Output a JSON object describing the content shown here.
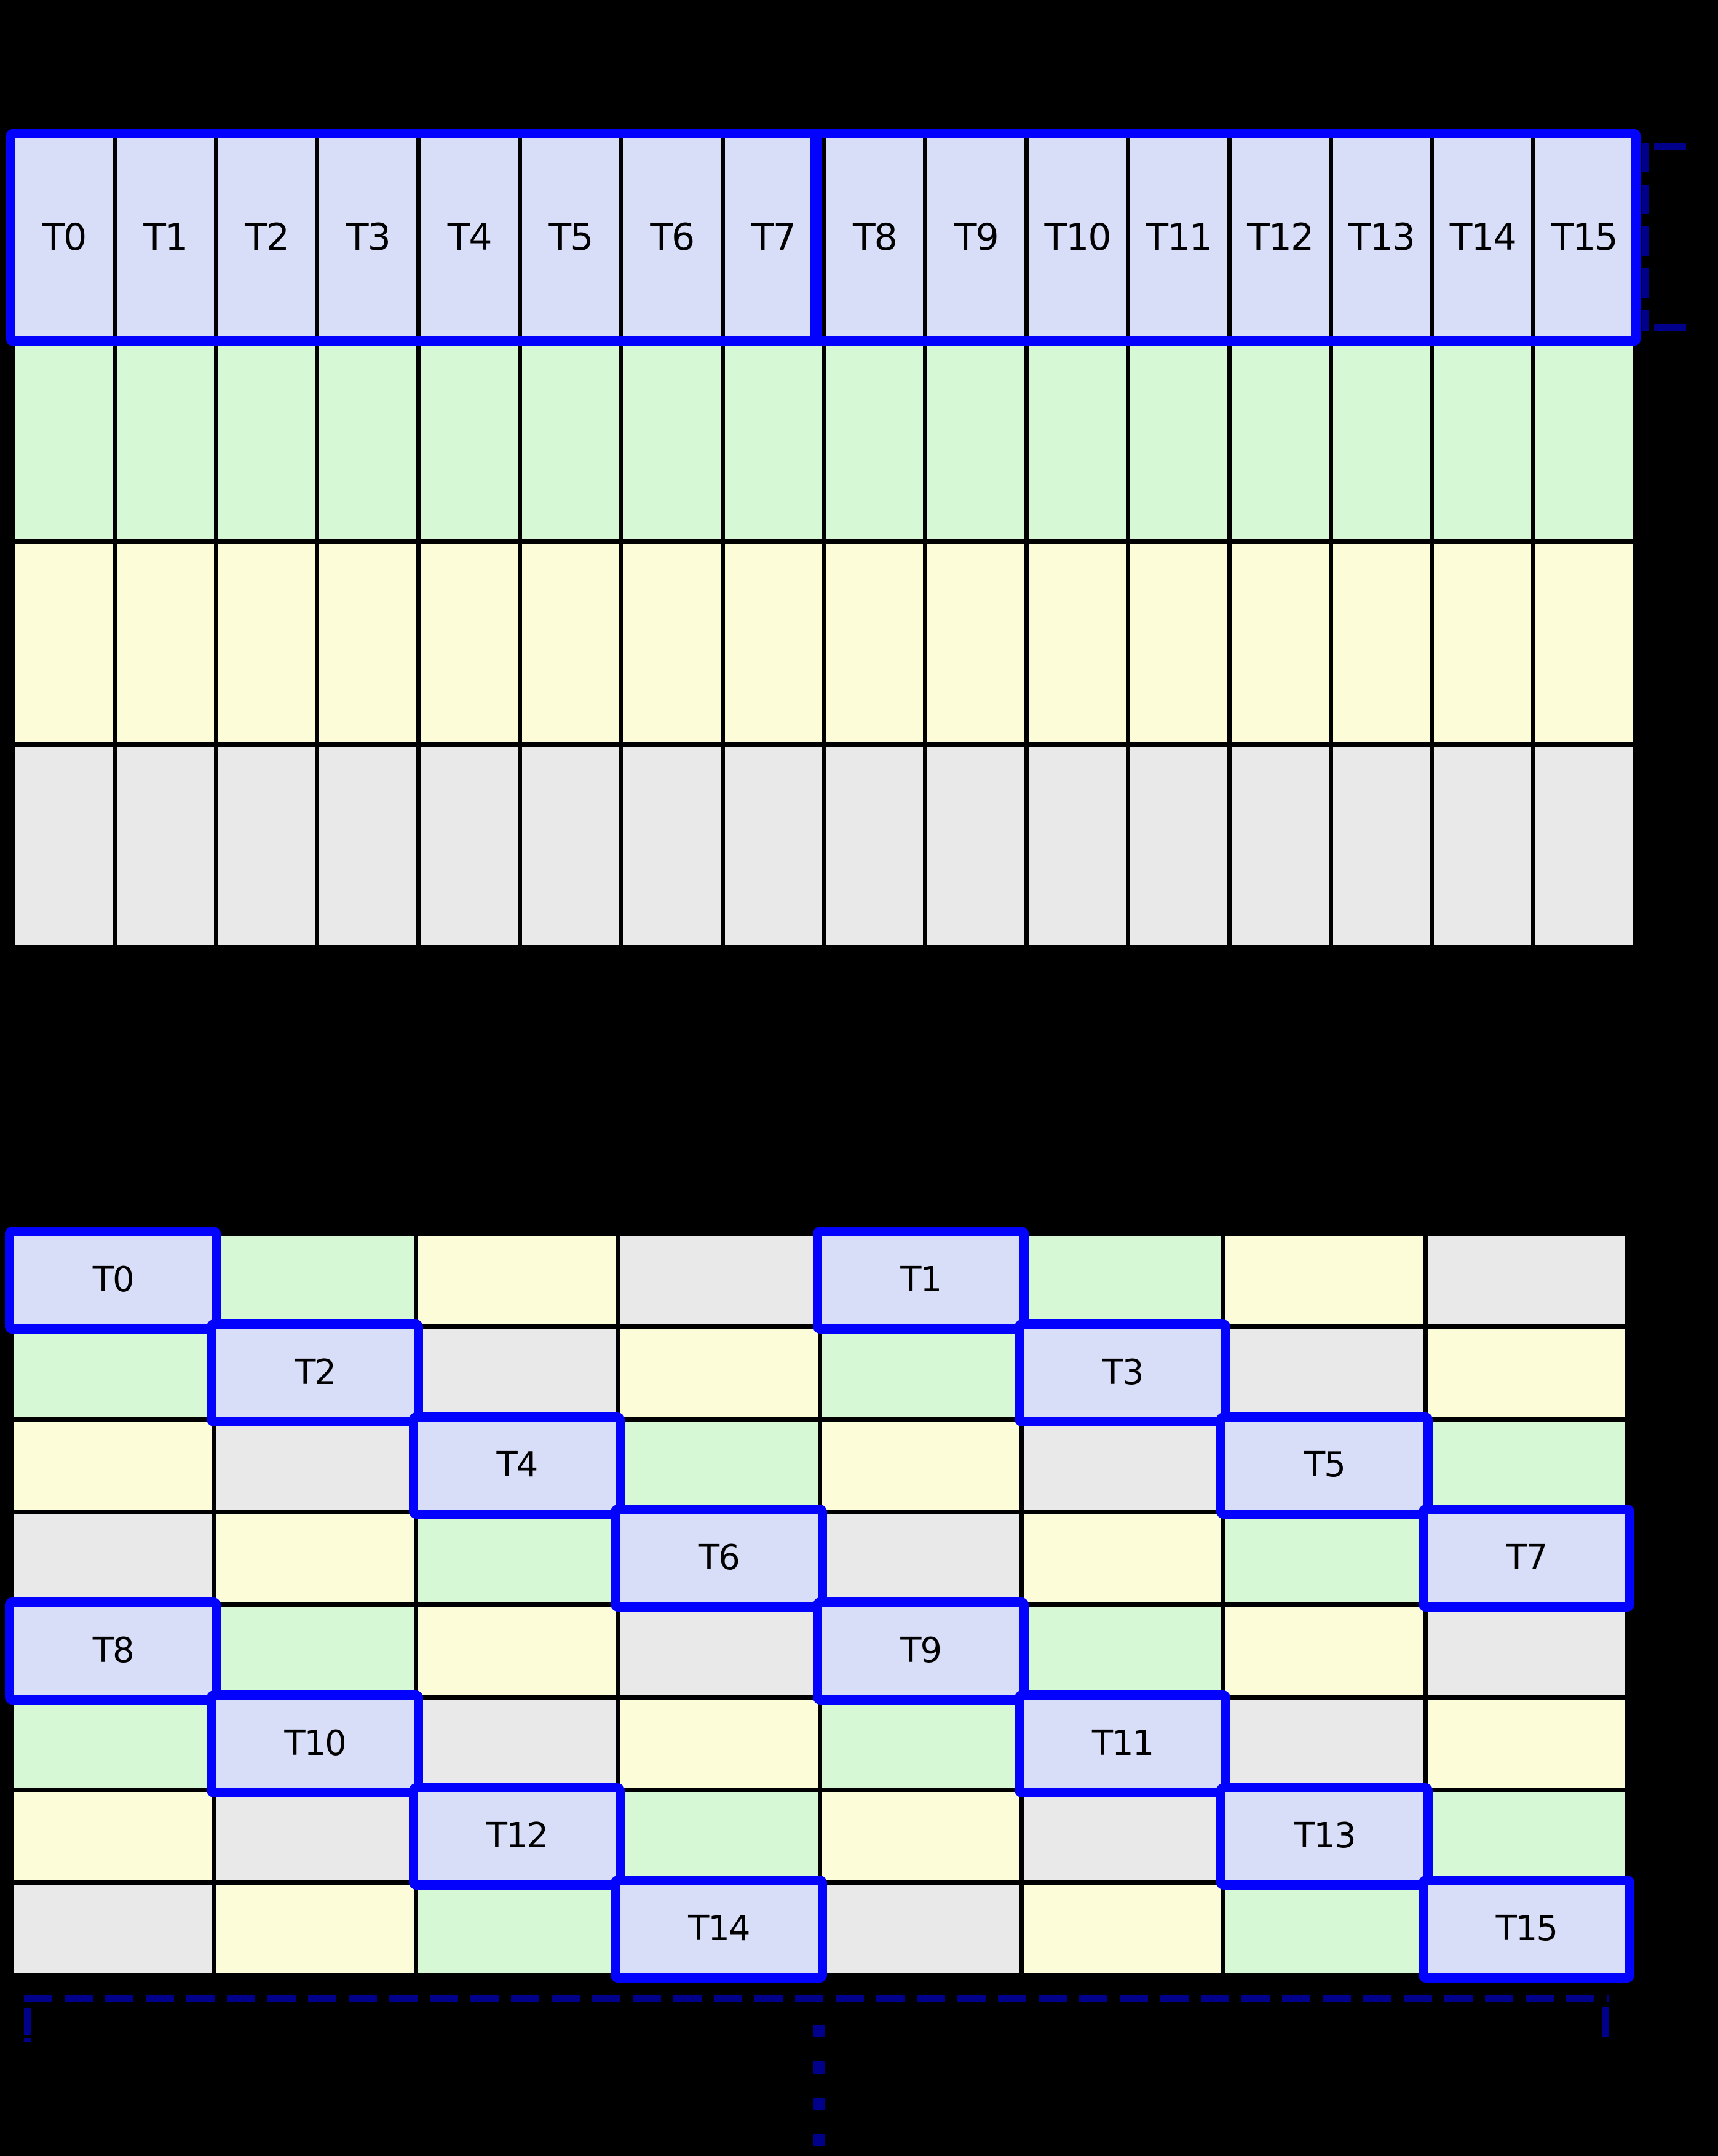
{
  "colors": {
    "background": "#000000",
    "grid_line": "#000000",
    "highlight_border": "#0202FD",
    "bracket": "#00008B",
    "label": "#000000",
    "fills": {
      "blue": "#D8DDF8",
      "green": "#D6F8D5",
      "yellow": "#FDFCD8",
      "gray": "#E9E9E9"
    }
  },
  "top_grid": {
    "columns": 16,
    "thread_labels": [
      "T0",
      "T1",
      "T2",
      "T3",
      "T4",
      "T5",
      "T6",
      "T7",
      "T8",
      "T9",
      "T10",
      "T11",
      "T12",
      "T13",
      "T14",
      "T15"
    ],
    "rows": [
      {
        "name": "thread-row",
        "fill": "blue",
        "labeled": true
      },
      {
        "name": "row-green",
        "fill": "green",
        "labeled": false
      },
      {
        "name": "row-yellow",
        "fill": "yellow",
        "labeled": false
      },
      {
        "name": "row-gray",
        "fill": "gray",
        "labeled": false
      }
    ],
    "highlight_groups": [
      {
        "first_label": "T0",
        "last_label": "T7"
      },
      {
        "first_label": "T8",
        "last_label": "T15"
      }
    ]
  },
  "bottom_grid": {
    "columns": 8,
    "rows": [
      {
        "cells": [
          {
            "fill": "blue",
            "label": "T0"
          },
          {
            "fill": "green"
          },
          {
            "fill": "yellow"
          },
          {
            "fill": "gray"
          },
          {
            "fill": "blue",
            "label": "T1"
          },
          {
            "fill": "green"
          },
          {
            "fill": "yellow"
          },
          {
            "fill": "gray"
          }
        ]
      },
      {
        "cells": [
          {
            "fill": "green"
          },
          {
            "fill": "blue",
            "label": "T2"
          },
          {
            "fill": "gray"
          },
          {
            "fill": "yellow"
          },
          {
            "fill": "green"
          },
          {
            "fill": "blue",
            "label": "T3"
          },
          {
            "fill": "gray"
          },
          {
            "fill": "yellow"
          }
        ]
      },
      {
        "cells": [
          {
            "fill": "yellow"
          },
          {
            "fill": "gray"
          },
          {
            "fill": "blue",
            "label": "T4"
          },
          {
            "fill": "green"
          },
          {
            "fill": "yellow"
          },
          {
            "fill": "gray"
          },
          {
            "fill": "blue",
            "label": "T5"
          },
          {
            "fill": "green"
          }
        ]
      },
      {
        "cells": [
          {
            "fill": "gray"
          },
          {
            "fill": "yellow"
          },
          {
            "fill": "green"
          },
          {
            "fill": "blue",
            "label": "T6"
          },
          {
            "fill": "gray"
          },
          {
            "fill": "yellow"
          },
          {
            "fill": "green"
          },
          {
            "fill": "blue",
            "label": "T7"
          }
        ]
      },
      {
        "cells": [
          {
            "fill": "blue",
            "label": "T8"
          },
          {
            "fill": "green"
          },
          {
            "fill": "yellow"
          },
          {
            "fill": "gray"
          },
          {
            "fill": "blue",
            "label": "T9"
          },
          {
            "fill": "green"
          },
          {
            "fill": "yellow"
          },
          {
            "fill": "gray"
          }
        ]
      },
      {
        "cells": [
          {
            "fill": "green"
          },
          {
            "fill": "blue",
            "label": "T10"
          },
          {
            "fill": "gray"
          },
          {
            "fill": "yellow"
          },
          {
            "fill": "green"
          },
          {
            "fill": "blue",
            "label": "T11"
          },
          {
            "fill": "gray"
          },
          {
            "fill": "yellow"
          }
        ]
      },
      {
        "cells": [
          {
            "fill": "yellow"
          },
          {
            "fill": "gray"
          },
          {
            "fill": "blue",
            "label": "T12"
          },
          {
            "fill": "green"
          },
          {
            "fill": "yellow"
          },
          {
            "fill": "gray"
          },
          {
            "fill": "blue",
            "label": "T13"
          },
          {
            "fill": "green"
          }
        ]
      },
      {
        "cells": [
          {
            "fill": "gray"
          },
          {
            "fill": "yellow"
          },
          {
            "fill": "green"
          },
          {
            "fill": "blue",
            "label": "T14"
          },
          {
            "fill": "gray"
          },
          {
            "fill": "yellow"
          },
          {
            "fill": "green"
          },
          {
            "fill": "blue",
            "label": "T15"
          }
        ]
      }
    ]
  },
  "annotations": {
    "row_height_bracket": {
      "style": "dashed",
      "color": "#00008B",
      "position": "right-of-thread-row"
    },
    "under_bracket": {
      "style": "dashed",
      "color": "#00008B",
      "position": "below-swizzled-grid"
    },
    "continuation": {
      "dots": 4
    }
  }
}
